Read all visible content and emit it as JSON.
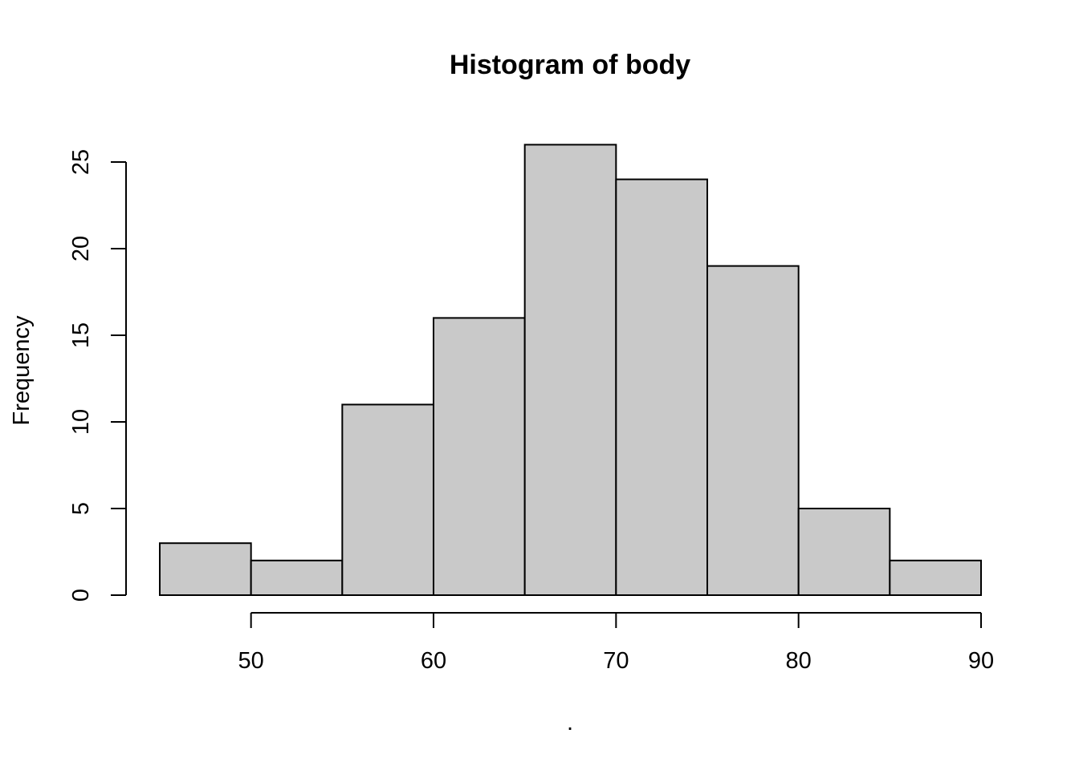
{
  "chart_data": {
    "type": "bar",
    "title": "Histogram of body",
    "xlabel": ".",
    "ylabel": "Frequency",
    "bin_edges": [
      45,
      50,
      55,
      60,
      65,
      70,
      75,
      80,
      85,
      90
    ],
    "values": [
      3,
      2,
      11,
      16,
      26,
      24,
      19,
      5,
      2
    ],
    "xlim": [
      45,
      90
    ],
    "ylim": [
      0,
      26
    ],
    "x_ticks": [
      50,
      60,
      70,
      80,
      90
    ],
    "y_ticks": [
      0,
      5,
      10,
      15,
      20,
      25
    ],
    "bar_fill": "#c9c9c9",
    "bar_stroke": "#000000",
    "grid": false,
    "legend": "none"
  }
}
